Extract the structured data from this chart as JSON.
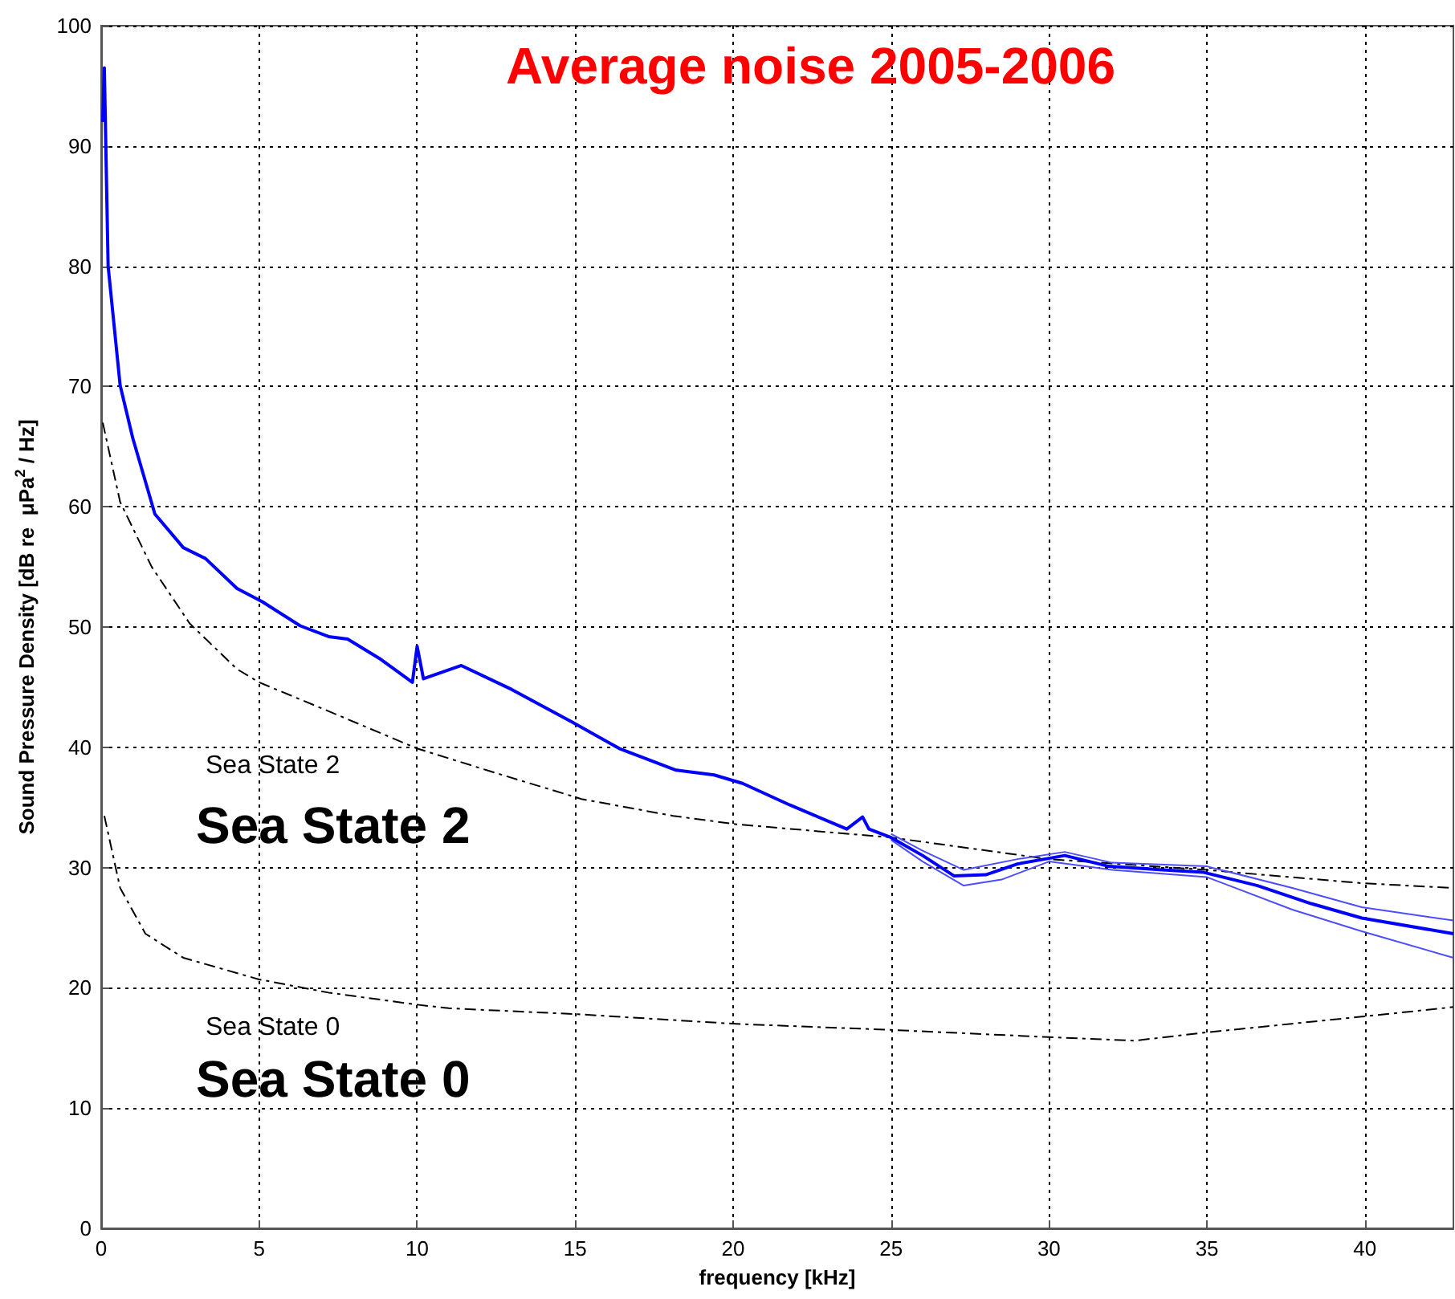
{
  "chart_data": {
    "type": "line",
    "title": "Average noise 2005-2006",
    "xlabel": "frequency [kHz]",
    "ylabel": "Sound Pressure Density [dB re  μPa$^{2}$ / Hz]",
    "xlim": [
      0,
      42.8
    ],
    "xticks": [
      0,
      5,
      10,
      15,
      20,
      25,
      30,
      35,
      40
    ],
    "ylim": [
      0,
      100
    ],
    "yticks": [
      0,
      10,
      20,
      30,
      40,
      50,
      60,
      70,
      80,
      90,
      100
    ],
    "grid": true,
    "marker": "none",
    "annotations": [
      "Sea State 2",
      "Sea State 2",
      "Sea State 0",
      "Sea State 0"
    ],
    "series": [
      {
        "color": "#000000",
        "line_style": "dashed",
        "x": [
          0.05,
          0.6,
          1.6,
          2.8,
          4.3,
          5.0,
          7.2,
          10.0,
          12.2,
          15.2,
          18.1,
          20.1,
          25.0,
          30.0,
          35.0,
          39.9,
          42.8
        ],
        "values": [
          67.0,
          60.4,
          55.0,
          50.3,
          46.5,
          45.4,
          43.0,
          39.9,
          38.1,
          35.7,
          34.3,
          33.6,
          32.5,
          30.7,
          29.8,
          28.7,
          28.3
        ]
      },
      {
        "color": "#000000",
        "line_style": "dashed",
        "x": [
          0.1,
          0.6,
          1.4,
          2.6,
          5.0,
          7.2,
          10.0,
          11.0,
          15.1,
          20.1,
          25.0,
          30.0,
          32.7,
          35.0,
          39.9,
          42.8
        ],
        "values": [
          34.3,
          28.3,
          24.5,
          22.5,
          20.7,
          19.6,
          18.6,
          18.3,
          17.8,
          17.0,
          16.5,
          15.9,
          15.6,
          16.3,
          17.6,
          18.4
        ]
      },
      {
        "color": "#4d4dff",
        "line_style": "solid",
        "x": [
          25.0,
          26.0,
          27.3,
          29.0,
          30.5,
          32.0,
          35.0,
          37.7,
          39.9,
          42.8
        ],
        "values": [
          32.8,
          31.4,
          29.8,
          30.7,
          31.3,
          30.4,
          30.1,
          28.3,
          26.7,
          25.6
        ]
      },
      {
        "color": "#4d4dff",
        "line_style": "solid",
        "x": [
          25.0,
          26.0,
          27.3,
          28.5,
          30.0,
          32.0,
          35.0,
          37.7,
          39.9,
          42.8
        ],
        "values": [
          32.3,
          30.5,
          28.5,
          29.0,
          30.5,
          29.8,
          29.2,
          26.5,
          24.7,
          22.5
        ]
      },
      {
        "color": "#0000ff",
        "line_style": "solid",
        "x": [
          0.05,
          0.1,
          0.22,
          0.6,
          1.0,
          1.7,
          2.6,
          3.3,
          4.3,
          5.1,
          6.3,
          7.2,
          7.8,
          8.8,
          9.85,
          10.0,
          10.2,
          11.4,
          13.0,
          14.9,
          16.4,
          18.2,
          19.4,
          20.3,
          21.8,
          23.6,
          24.1,
          24.3,
          25.0,
          26.0,
          27.0,
          28.0,
          29.0,
          30.5,
          31.9,
          33.6,
          34.9,
          36.6,
          38.3,
          39.9,
          42.8
        ],
        "values": [
          92.0,
          96.5,
          80.0,
          70.1,
          65.7,
          59.4,
          56.6,
          55.7,
          53.2,
          52.1,
          50.1,
          49.2,
          49.0,
          47.4,
          45.4,
          48.4,
          45.7,
          46.8,
          44.8,
          42.1,
          39.9,
          38.1,
          37.7,
          37.0,
          35.2,
          33.2,
          34.2,
          33.2,
          32.5,
          31.0,
          29.3,
          29.4,
          30.3,
          31.0,
          30.1,
          29.8,
          29.6,
          28.5,
          27.0,
          25.8,
          24.5
        ]
      }
    ]
  }
}
